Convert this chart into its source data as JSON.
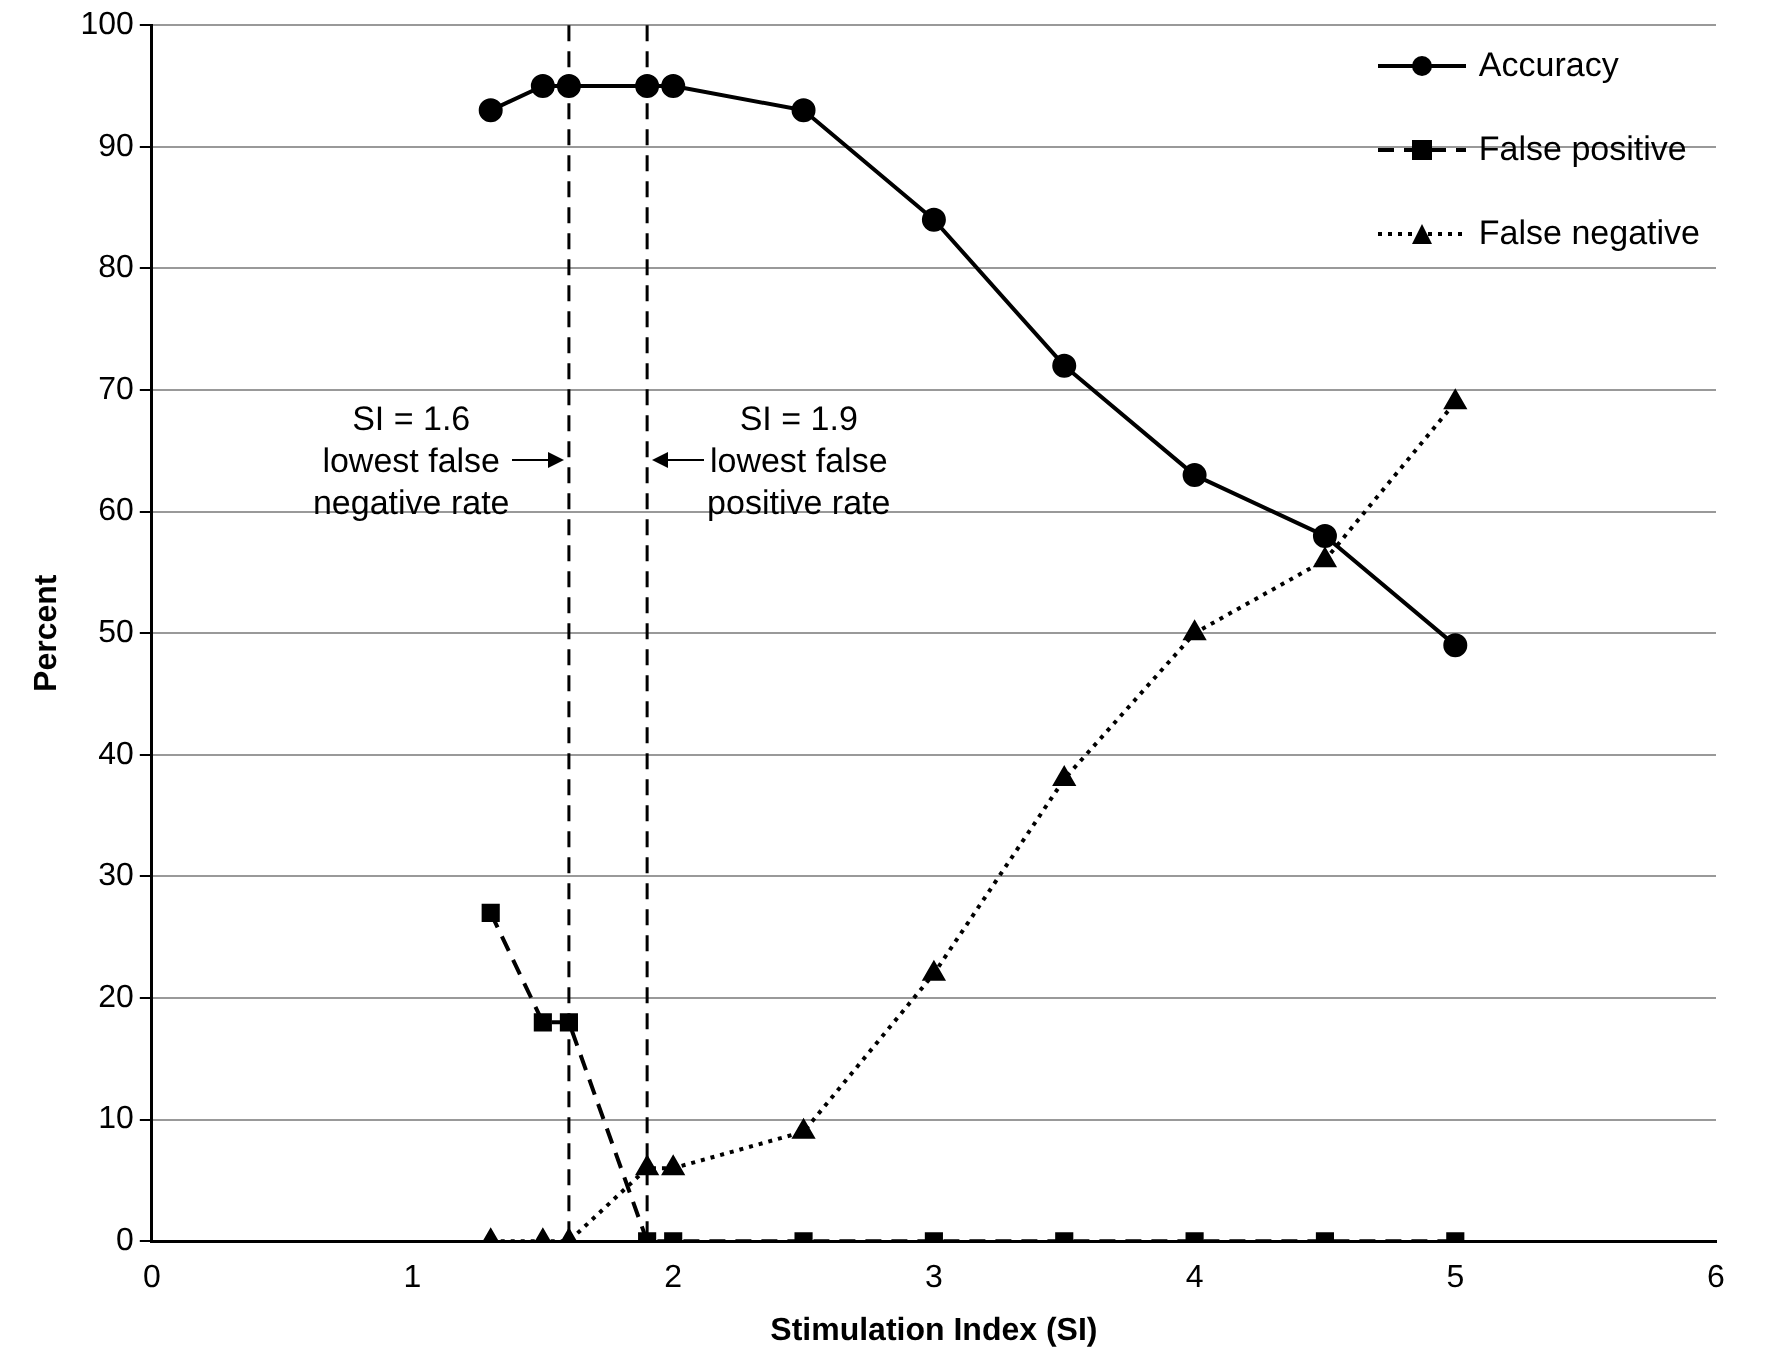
{
  "chart_data": {
    "type": "line",
    "xlabel": "Stimulation Index (SI)",
    "ylabel": "Percent",
    "xlim": [
      0,
      6
    ],
    "xticks": [
      0,
      1,
      2,
      3,
      4,
      5,
      6
    ],
    "ylim": [
      0,
      100
    ],
    "yticks": [
      0,
      10,
      20,
      30,
      40,
      50,
      60,
      70,
      80,
      90,
      100
    ],
    "grid": "y",
    "legend": "top right",
    "series": [
      {
        "name": "Accuracy",
        "color": "#000000",
        "marker": "circle",
        "line_style": "solid",
        "x": [
          1.3,
          1.5,
          1.6,
          1.9,
          2,
          2.5,
          3,
          3.5,
          4,
          4.5,
          5
        ],
        "values": [
          93,
          95,
          95,
          95,
          95,
          93,
          84,
          72,
          63,
          58,
          49
        ]
      },
      {
        "name": "False positive",
        "color": "#000000",
        "marker": "square",
        "line_style": "dashed",
        "x": [
          1.3,
          1.5,
          1.6,
          1.9,
          2,
          2.5,
          3,
          3.5,
          4,
          4.5,
          5
        ],
        "values": [
          27,
          18,
          18,
          0,
          0,
          0,
          0,
          0,
          0,
          0,
          0
        ]
      },
      {
        "name": "False negative",
        "color": "#000000",
        "marker": "triangle",
        "line_style": "dotted",
        "x": [
          1.3,
          1.5,
          1.6,
          1.9,
          2,
          2.5,
          3,
          3.5,
          4,
          4.5,
          5
        ],
        "values": [
          0,
          0,
          0,
          6,
          6,
          9,
          22,
          38,
          50,
          56,
          69
        ]
      }
    ],
    "ref_lines": [
      {
        "axis": "x",
        "value": 1.6,
        "label": "SI = 1.6\nlowest false\nnegative rate",
        "line_style": "dashed",
        "color": "#000000"
      },
      {
        "axis": "x",
        "value": 1.9,
        "label": "SI = 1.9\nlowest false\npositive rate",
        "line_style": "dashed",
        "color": "#000000"
      }
    ]
  }
}
